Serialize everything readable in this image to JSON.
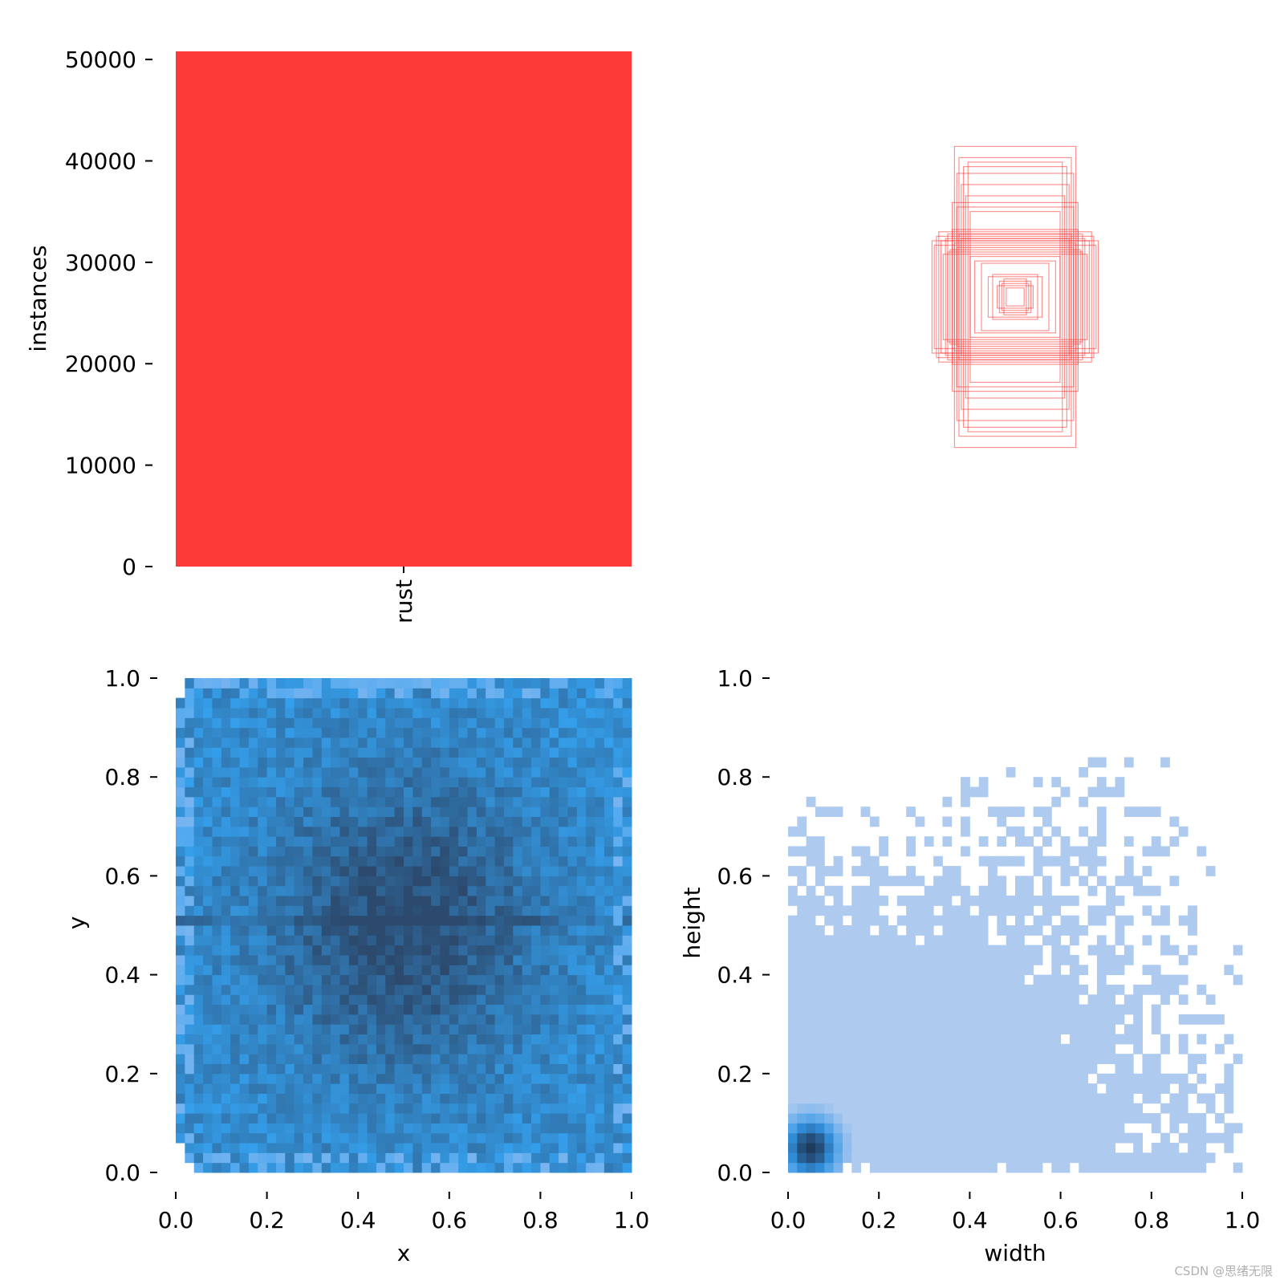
{
  "watermark": "CSDN @思绪无限",
  "chart_data": [
    {
      "id": "labels",
      "type": "bar",
      "categories": [
        "rust"
      ],
      "values": [
        50800
      ],
      "ylabel": "instances",
      "yticks": [
        "0",
        "10000",
        "20000",
        "30000",
        "40000",
        "50000"
      ],
      "ylim": [
        0,
        50800
      ],
      "color": "#fe3a39"
    },
    {
      "id": "boxes",
      "type": "scatter",
      "description_kind": "box-outline overlay (centered at 0.5,0.5)",
      "boxes_wh": [
        [
          0.35,
          0.27
        ],
        [
          0.3,
          0.2
        ],
        [
          0.26,
          0.22
        ],
        [
          0.33,
          0.25
        ],
        [
          0.28,
          0.3
        ],
        [
          0.36,
          0.23
        ],
        [
          0.25,
          0.28
        ],
        [
          0.31,
          0.26
        ],
        [
          0.27,
          0.24
        ],
        [
          0.34,
          0.29
        ],
        [
          0.29,
          0.21
        ],
        [
          0.32,
          0.19
        ],
        [
          0.24,
          0.26
        ],
        [
          0.37,
          0.25
        ],
        [
          0.3,
          0.28
        ],
        [
          0.22,
          0.45
        ],
        [
          0.24,
          0.5
        ],
        [
          0.26,
          0.55
        ],
        [
          0.25,
          0.62
        ],
        [
          0.21,
          0.6
        ],
        [
          0.27,
          0.67
        ],
        [
          0.23,
          0.58
        ],
        [
          0.26,
          0.4
        ],
        [
          0.28,
          0.42
        ],
        [
          0.2,
          0.38
        ],
        [
          0.06,
          0.06
        ],
        [
          0.05,
          0.08
        ],
        [
          0.08,
          0.05
        ],
        [
          0.04,
          0.04
        ],
        [
          0.07,
          0.07
        ],
        [
          0.1,
          0.1
        ],
        [
          0.12,
          0.09
        ],
        [
          0.15,
          0.15
        ],
        [
          0.18,
          0.16
        ],
        [
          0.2,
          0.18
        ]
      ],
      "color": "#fe3a39"
    },
    {
      "id": "xy",
      "type": "heatmap",
      "xlabel": "x",
      "ylabel": "y",
      "xlim": [
        0,
        1
      ],
      "ylim": [
        0,
        1
      ],
      "xticks": [
        "0.0",
        "0.2",
        "0.4",
        "0.6",
        "0.8",
        "1.0"
      ],
      "yticks": [
        "0.0",
        "0.2",
        "0.4",
        "0.6",
        "0.8",
        "1.0"
      ],
      "bins": 50,
      "density_center": [
        0.5,
        0.5
      ],
      "peak_color": "#2c4a6e",
      "low_color": "#35a1ee"
    },
    {
      "id": "wh",
      "type": "heatmap",
      "xlabel": "width",
      "ylabel": "height",
      "xlim": [
        0,
        1
      ],
      "ylim": [
        0,
        1
      ],
      "xticks": [
        "0.0",
        "0.2",
        "0.4",
        "0.6",
        "0.8",
        "1.0"
      ],
      "yticks": [
        "0.0",
        "0.2",
        "0.4",
        "0.6",
        "0.8",
        "1.0"
      ],
      "bins": 50,
      "density_peak": [
        0.05,
        0.05
      ],
      "peak_color": "#1f3b5c",
      "low_color": "#aecbef"
    }
  ]
}
